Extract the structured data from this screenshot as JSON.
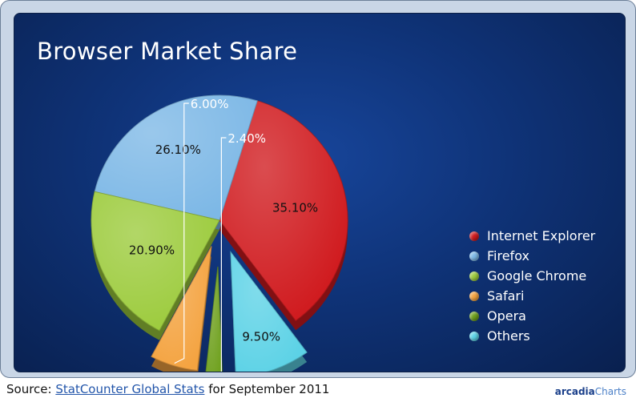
{
  "chart_data": {
    "type": "pie",
    "title": "Browser Market Share",
    "slices": [
      {
        "label": "Internet Explorer",
        "value": 35.1,
        "display": "35.10%",
        "color": "#d01a1e",
        "exploded": false
      },
      {
        "label": "Firefox",
        "value": 26.1,
        "display": "26.10%",
        "color": "#7db8e6",
        "exploded": false
      },
      {
        "label": "Google Chrome",
        "value": 20.9,
        "display": "20.90%",
        "color": "#9ccb3c",
        "exploded": false
      },
      {
        "label": "Safari",
        "value": 6.0,
        "display": "6.00%",
        "color": "#f4a340",
        "exploded": true
      },
      {
        "label": "Opera",
        "value": 2.4,
        "display": "2.40%",
        "color": "#6ea01c",
        "exploded": true
      },
      {
        "label": "Others",
        "value": 9.5,
        "display": "9.50%",
        "color": "#5cd2e6",
        "exploded": true
      }
    ],
    "legend_position": "right"
  },
  "footer": {
    "prefix": "Source: ",
    "link_text": "StatCounter Global Stats",
    "suffix": " for September 2011"
  },
  "brand": {
    "part1": "arcadia",
    "part2": "Charts"
  }
}
